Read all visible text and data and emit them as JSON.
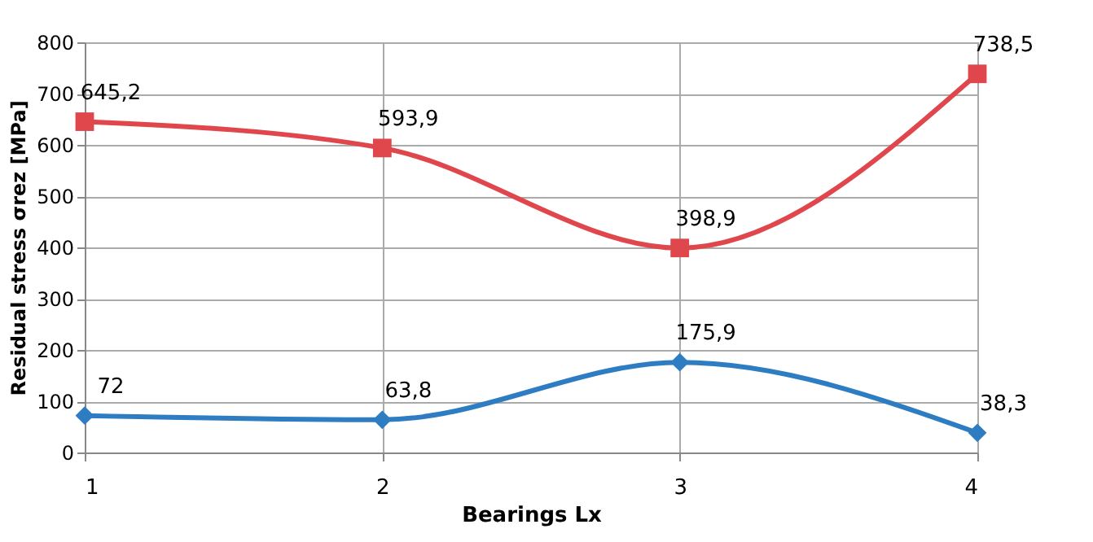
{
  "chart_data": {
    "type": "line",
    "xlabel": "Bearings Lx",
    "ylabel": "Residual stress σrez [MPa]",
    "x": [
      1,
      2,
      3,
      4
    ],
    "xlim": [
      1,
      4
    ],
    "xticks": [
      1,
      2,
      3,
      4
    ],
    "ylim": [
      0,
      800
    ],
    "yticks": [
      0,
      100,
      200,
      300,
      400,
      500,
      600,
      700,
      800
    ],
    "grid": true,
    "series": [
      {
        "color": "#e0474c",
        "marker": "square",
        "values": [
          645.2,
          593.9,
          398.9,
          738.5
        ],
        "value_labels": [
          "645,2",
          "593,9",
          "398,9",
          "738,5"
        ]
      },
      {
        "color": "#2e7dc2",
        "marker": "diamond",
        "values": [
          72,
          63.8,
          175.9,
          38.3
        ],
        "value_labels": [
          "72",
          "63,8",
          "175,9",
          "38,3"
        ]
      }
    ]
  }
}
